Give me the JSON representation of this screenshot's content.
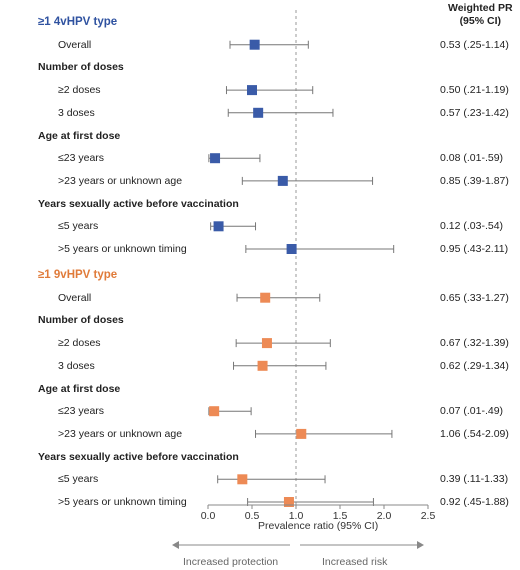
{
  "header": {
    "pr_line1": "Weighted PR",
    "pr_line2": "(95% CI)"
  },
  "arrows": {
    "left": "Increased protection",
    "right": "Increased risk"
  },
  "chart_data": {
    "type": "forest",
    "xlabel": "Prevalence ratio (95% CI)",
    "xlim": [
      0,
      2.5
    ],
    "xticks": [
      "0.0",
      "0.5",
      "1.0",
      "1.5",
      "2.0",
      "2.5"
    ],
    "reference_line": 1.0,
    "colors": {
      "4vHPV": "#3a5ba8",
      "9vHPV": "#ed8a55",
      "ci": "#777777"
    },
    "groups": [
      {
        "title": "≥1 4vHPV type",
        "series": "4vHPV",
        "rows": [
          {
            "kind": "row",
            "label": "Overall",
            "pr": 0.53,
            "lo": 0.25,
            "hi": 1.14,
            "text": "0.53 (.25-1.14)"
          },
          {
            "kind": "header",
            "label": "Number of doses"
          },
          {
            "kind": "row",
            "label": "≥2 doses",
            "pr": 0.5,
            "lo": 0.21,
            "hi": 1.19,
            "text": "0.50 (.21-1.19)"
          },
          {
            "kind": "row",
            "label": "3 doses",
            "pr": 0.57,
            "lo": 0.23,
            "hi": 1.42,
            "text": "0.57 (.23-1.42)"
          },
          {
            "kind": "header",
            "label": "Age at first dose"
          },
          {
            "kind": "row",
            "label": "≤23 years",
            "pr": 0.08,
            "lo": 0.01,
            "hi": 0.59,
            "text": "0.08 (.01-.59)"
          },
          {
            "kind": "row",
            "label": ">23 years or unknown age",
            "pr": 0.85,
            "lo": 0.39,
            "hi": 1.87,
            "text": "0.85 (.39-1.87)"
          },
          {
            "kind": "header",
            "label": "Years sexually active before vaccination"
          },
          {
            "kind": "row",
            "label": "≤5 years",
            "pr": 0.12,
            "lo": 0.03,
            "hi": 0.54,
            "text": "0.12 (.03-.54)"
          },
          {
            "kind": "row",
            "label": ">5 years or unknown timing",
            "pr": 0.95,
            "lo": 0.43,
            "hi": 2.11,
            "text": "0.95 (.43-2.11)"
          }
        ]
      },
      {
        "title": "≥1 9vHPV type",
        "series": "9vHPV",
        "rows": [
          {
            "kind": "row",
            "label": "Overall",
            "pr": 0.65,
            "lo": 0.33,
            "hi": 1.27,
            "text": "0.65 (.33-1.27)"
          },
          {
            "kind": "header",
            "label": "Number of doses"
          },
          {
            "kind": "row",
            "label": "≥2 doses",
            "pr": 0.67,
            "lo": 0.32,
            "hi": 1.39,
            "text": "0.67 (.32-1.39)"
          },
          {
            "kind": "row",
            "label": "3 doses",
            "pr": 0.62,
            "lo": 0.29,
            "hi": 1.34,
            "text": "0.62 (.29-1.34)"
          },
          {
            "kind": "header",
            "label": "Age at first dose"
          },
          {
            "kind": "row",
            "label": "≤23 years",
            "pr": 0.07,
            "lo": 0.01,
            "hi": 0.49,
            "text": "0.07 (.01-.49)"
          },
          {
            "kind": "row",
            "label": ">23 years or unknown age",
            "pr": 1.06,
            "lo": 0.54,
            "hi": 2.09,
            "text": "1.06 (.54-2.09)"
          },
          {
            "kind": "header",
            "label": "Years sexually active before vaccination"
          },
          {
            "kind": "row",
            "label": "≤5 years",
            "pr": 0.39,
            "lo": 0.11,
            "hi": 1.33,
            "text": "0.39 (.11-1.33)"
          },
          {
            "kind": "row",
            "label": ">5 years or unknown timing",
            "pr": 0.92,
            "lo": 0.45,
            "hi": 1.88,
            "text": "0.92 (.45-1.88)"
          }
        ]
      }
    ]
  }
}
